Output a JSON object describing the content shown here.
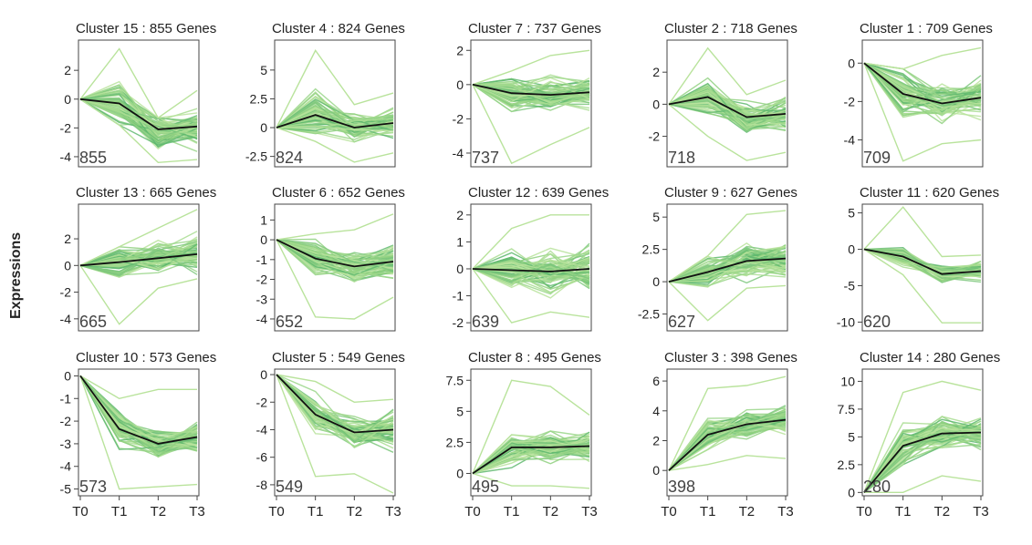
{
  "figure": {
    "ylabel": "Expressions",
    "x_ticks": [
      "T0",
      "T1",
      "T2",
      "T3"
    ],
    "colors": {
      "bundle": [
        "#b9e39c",
        "#9ad68a",
        "#7cc77d",
        "#a9dd92",
        "#5fb86f",
        "#8fd07f"
      ],
      "mean_line": "#111111",
      "frame": "#444444"
    }
  },
  "chart_data": [
    {
      "type": "line",
      "title": "Cluster 15 : 855 Genes",
      "count_label": "855",
      "x": [
        "T0",
        "T1",
        "T2",
        "T3"
      ],
      "mean": [
        0,
        -0.3,
        -2.1,
        -1.9
      ],
      "ylim": [
        -4.7,
        4.1
      ],
      "yticks": [
        -4,
        -2,
        0,
        2
      ],
      "spread": [
        0,
        1.6,
        1.7,
        1.5
      ],
      "extreme_hi": [
        0,
        3.5,
        -1.3,
        0.6
      ],
      "extreme_lo": [
        0,
        -1.8,
        -4.4,
        -4.2
      ]
    },
    {
      "type": "line",
      "title": "Cluster 4 : 824 Genes",
      "count_label": "824",
      "x": [
        "T0",
        "T1",
        "T2",
        "T3"
      ],
      "mean": [
        0,
        1.1,
        0.0,
        0.4
      ],
      "ylim": [
        -3.4,
        7.6
      ],
      "yticks": [
        -2.5,
        0,
        2.5,
        5
      ],
      "spread": [
        0,
        2.3,
        1.4,
        1.4
      ],
      "extreme_hi": [
        0,
        6.7,
        2.0,
        3.0
      ],
      "extreme_lo": [
        0,
        -1.2,
        -3.0,
        -2.2
      ]
    },
    {
      "type": "line",
      "title": "Cluster 7 : 737 Genes",
      "count_label": "737",
      "x": [
        "T0",
        "T1",
        "T2",
        "T3"
      ],
      "mean": [
        0,
        -0.5,
        -0.6,
        -0.45
      ],
      "ylim": [
        -4.8,
        2.6
      ],
      "yticks": [
        -4,
        -2,
        0,
        2
      ],
      "spread": [
        0,
        1.2,
        1.1,
        1.0
      ],
      "extreme_hi": [
        0,
        0.8,
        1.7,
        2.0
      ],
      "extreme_lo": [
        0,
        -4.6,
        -3.5,
        -2.5
      ]
    },
    {
      "type": "line",
      "title": "Cluster 2 : 718 Genes",
      "count_label": "718",
      "x": [
        "T0",
        "T1",
        "T2",
        "T3"
      ],
      "mean": [
        0,
        0.45,
        -0.8,
        -0.6
      ],
      "ylim": [
        -3.9,
        4.0
      ],
      "yticks": [
        -2,
        0,
        2
      ],
      "spread": [
        0,
        1.4,
        1.2,
        1.3
      ],
      "extreme_hi": [
        0,
        3.5,
        0.6,
        1.5
      ],
      "extreme_lo": [
        0,
        -2.0,
        -3.5,
        -3.0
      ]
    },
    {
      "type": "line",
      "title": "Cluster 1 : 709 Genes",
      "count_label": "709",
      "x": [
        "T0",
        "T1",
        "T2",
        "T3"
      ],
      "mean": [
        0,
        -1.6,
        -2.1,
        -1.8
      ],
      "ylim": [
        -5.4,
        1.2
      ],
      "yticks": [
        -4,
        -2,
        0
      ],
      "spread": [
        0,
        1.4,
        1.2,
        1.3
      ],
      "extreme_hi": [
        0,
        -0.3,
        0.4,
        0.8
      ],
      "extreme_lo": [
        0,
        -5.1,
        -4.2,
        -4.0
      ]
    },
    {
      "type": "line",
      "title": "Cluster 13 : 665 Genes",
      "count_label": "665",
      "x": [
        "T0",
        "T1",
        "T2",
        "T3"
      ],
      "mean": [
        0,
        0.25,
        0.55,
        0.85
      ],
      "ylim": [
        -4.9,
        4.6
      ],
      "yticks": [
        -4,
        -2,
        0,
        2
      ],
      "spread": [
        0,
        1.3,
        1.3,
        1.5
      ],
      "extreme_hi": [
        0,
        1.4,
        2.8,
        4.2
      ],
      "extreme_lo": [
        0,
        -4.4,
        -1.7,
        -1.0
      ]
    },
    {
      "type": "line",
      "title": "Cluster 6 : 652 Genes",
      "count_label": "652",
      "x": [
        "T0",
        "T1",
        "T2",
        "T3"
      ],
      "mean": [
        0,
        -0.95,
        -1.35,
        -1.1
      ],
      "ylim": [
        -4.6,
        1.8
      ],
      "yticks": [
        -4,
        -3,
        -2,
        -1,
        0,
        1
      ],
      "spread": [
        0,
        1.1,
        1.0,
        1.1
      ],
      "extreme_hi": [
        0,
        0.3,
        0.5,
        1.3
      ],
      "extreme_lo": [
        0,
        -3.9,
        -4.0,
        -2.9
      ]
    },
    {
      "type": "line",
      "title": "Cluster 12 : 639 Genes",
      "count_label": "639",
      "x": [
        "T0",
        "T1",
        "T2",
        "T3"
      ],
      "mean": [
        0,
        -0.05,
        -0.1,
        0.0
      ],
      "ylim": [
        -2.3,
        2.4
      ],
      "yticks": [
        -2,
        -1,
        0,
        1,
        2
      ],
      "spread": [
        0,
        0.9,
        1.0,
        1.0
      ],
      "extreme_hi": [
        0,
        1.5,
        2.0,
        2.0
      ],
      "extreme_lo": [
        0,
        -2.0,
        -1.6,
        -1.8
      ]
    },
    {
      "type": "line",
      "title": "Cluster 9 : 627 Genes",
      "count_label": "627",
      "x": [
        "T0",
        "T1",
        "T2",
        "T3"
      ],
      "mean": [
        0,
        0.75,
        1.6,
        1.8
      ],
      "ylim": [
        -3.8,
        6.0
      ],
      "yticks": [
        -2.5,
        0,
        2.5,
        5
      ],
      "spread": [
        0,
        1.3,
        1.6,
        1.7
      ],
      "extreme_hi": [
        0,
        2.0,
        5.2,
        5.5
      ],
      "extreme_lo": [
        0,
        -3.0,
        -0.5,
        -0.3
      ]
    },
    {
      "type": "line",
      "title": "Cluster 11 : 620 Genes",
      "count_label": "620",
      "x": [
        "T0",
        "T1",
        "T2",
        "T3"
      ],
      "mean": [
        0,
        -1.0,
        -3.4,
        -3.0
      ],
      "ylim": [
        -11.2,
        6.2
      ],
      "yticks": [
        -10,
        -5,
        0,
        5
      ],
      "spread": [
        0,
        1.6,
        1.4,
        1.5
      ],
      "extreme_hi": [
        0,
        5.8,
        -1.0,
        -0.8
      ],
      "extreme_lo": [
        0,
        -3.5,
        -10.1,
        -10.1
      ]
    },
    {
      "type": "line",
      "title": "Cluster 10 : 573 Genes",
      "count_label": "573",
      "x": [
        "T0",
        "T1",
        "T2",
        "T3"
      ],
      "mean": [
        0,
        -2.35,
        -3.0,
        -2.7
      ],
      "ylim": [
        -5.3,
        0.3
      ],
      "yticks": [
        -5,
        -4,
        -3,
        -2,
        -1,
        0
      ],
      "spread": [
        0,
        0.9,
        0.8,
        0.8
      ],
      "extreme_hi": [
        0,
        -1.0,
        -0.6,
        -0.6
      ],
      "extreme_lo": [
        0,
        -5.0,
        -4.9,
        -4.8
      ]
    },
    {
      "type": "line",
      "title": "Cluster 5 : 549 Genes",
      "count_label": "549",
      "x": [
        "T0",
        "T1",
        "T2",
        "T3"
      ],
      "mean": [
        0,
        -2.9,
        -4.2,
        -4.0
      ],
      "ylim": [
        -8.8,
        0.4
      ],
      "yticks": [
        -8,
        -6,
        -4,
        -2,
        0
      ],
      "spread": [
        0,
        1.6,
        1.5,
        1.6
      ],
      "extreme_hi": [
        0,
        -0.5,
        -2.0,
        -1.8
      ],
      "extreme_lo": [
        0,
        -7.4,
        -7.2,
        -8.6
      ]
    },
    {
      "type": "line",
      "title": "Cluster 8 : 495 Genes",
      "count_label": "495",
      "x": [
        "T0",
        "T1",
        "T2",
        "T3"
      ],
      "mean": [
        0,
        2.1,
        2.1,
        2.2
      ],
      "ylim": [
        -1.8,
        8.4
      ],
      "yticks": [
        0,
        2.5,
        5,
        7.5
      ],
      "spread": [
        0,
        1.6,
        1.4,
        1.4
      ],
      "extreme_hi": [
        0,
        7.5,
        7.0,
        4.7
      ],
      "extreme_lo": [
        0,
        -1.0,
        -1.0,
        -1.2
      ]
    },
    {
      "type": "line",
      "title": "Cluster 3 : 398 Genes",
      "count_label": "398",
      "x": [
        "T0",
        "T1",
        "T2",
        "T3"
      ],
      "mean": [
        0,
        2.4,
        3.1,
        3.4
      ],
      "ylim": [
        -1.7,
        6.8
      ],
      "yticks": [
        0,
        2,
        4,
        6
      ],
      "spread": [
        0,
        1.2,
        1.0,
        1.1
      ],
      "extreme_hi": [
        0,
        5.5,
        5.7,
        6.3
      ],
      "extreme_lo": [
        0,
        0.4,
        1.0,
        0.8
      ]
    },
    {
      "type": "line",
      "title": "Cluster 14 : 280 Genes",
      "count_label": "280",
      "x": [
        "T0",
        "T1",
        "T2",
        "T3"
      ],
      "mean": [
        0,
        4.2,
        5.3,
        5.4
      ],
      "ylim": [
        -0.3,
        11.1
      ],
      "yticks": [
        0,
        2.5,
        5,
        7.5,
        10
      ],
      "spread": [
        0,
        2.0,
        1.8,
        1.8
      ],
      "extreme_hi": [
        0,
        9.0,
        10.0,
        9.2
      ],
      "extreme_lo": [
        0,
        0.0,
        1.5,
        1.0
      ]
    }
  ]
}
